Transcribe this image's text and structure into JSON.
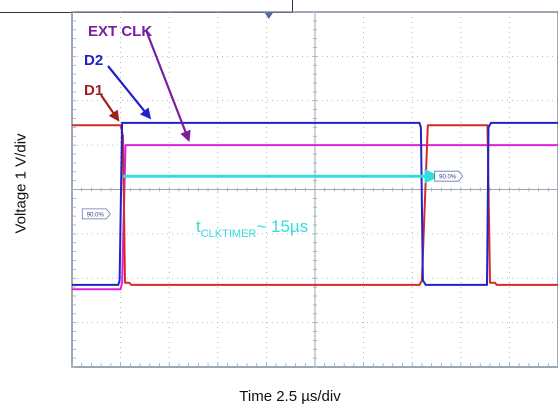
{
  "chart_data": {
    "type": "line",
    "xlabel": "Time 2.5 µs/div",
    "ylabel": "Voltage 1 V/div",
    "xlim": [
      0,
      10
    ],
    "ylim": [
      -4,
      4
    ],
    "xunit": "div",
    "yunit": "div",
    "grid": true,
    "colors": {
      "background": "#ffffff",
      "grid": "#9aa8b8",
      "frame": "#7a8a9a"
    },
    "series": [
      {
        "name": "D1",
        "color": "#d42a2a",
        "x": [
          0,
          1.0,
          1.05,
          1.09,
          1.18,
          1.22,
          7.15,
          7.2,
          7.32,
          7.36,
          8.55,
          8.6,
          8.7,
          8.74,
          10
        ],
        "y": [
          1.45,
          1.45,
          1.2,
          -2.1,
          -2.1,
          -2.15,
          -2.15,
          -2.05,
          1.45,
          1.45,
          1.45,
          -2.1,
          -2.1,
          -2.15,
          -2.15
        ]
      },
      {
        "name": "D2",
        "color": "#2222cc",
        "x": [
          0,
          0.95,
          0.98,
          1.03,
          1.08,
          7.15,
          7.18,
          7.22,
          7.28,
          8.54,
          8.57,
          8.62,
          8.68,
          10
        ],
        "y": [
          -2.15,
          -2.15,
          -2.05,
          1.5,
          1.5,
          1.5,
          1.4,
          -2.05,
          -2.15,
          -2.15,
          1.4,
          1.5,
          1.5,
          1.5
        ]
      },
      {
        "name": "EXT CLK",
        "color": "#dd22dd",
        "x": [
          0,
          1.0,
          1.03,
          1.1,
          10
        ],
        "y": [
          -2.25,
          -2.25,
          -2.1,
          1.0,
          1.0
        ]
      }
    ],
    "annotations": [
      {
        "text_main": "t",
        "text_sub": "CLKTIMER",
        "text_after": "~ 15µs",
        "color": "#33dddd",
        "arrow": {
          "from": [
            1.05,
            0.3
          ],
          "to": [
            7.5,
            0.3
          ]
        }
      },
      {
        "name": "marker-left",
        "text": "90.0%",
        "x": 0.5,
        "y": -0.55
      },
      {
        "name": "marker-right",
        "text": "90.0%",
        "x": 7.75,
        "y": 0.3
      }
    ],
    "labels": [
      {
        "text": "EXT CLK",
        "color": "#7a1fa0",
        "target": [
          2.4,
          1.05
        ]
      },
      {
        "text": "D2",
        "color": "#2020cc",
        "target": [
          1.6,
          1.55
        ]
      },
      {
        "text": "D1",
        "color": "#a02020",
        "target": [
          0.95,
          1.5
        ]
      }
    ]
  }
}
